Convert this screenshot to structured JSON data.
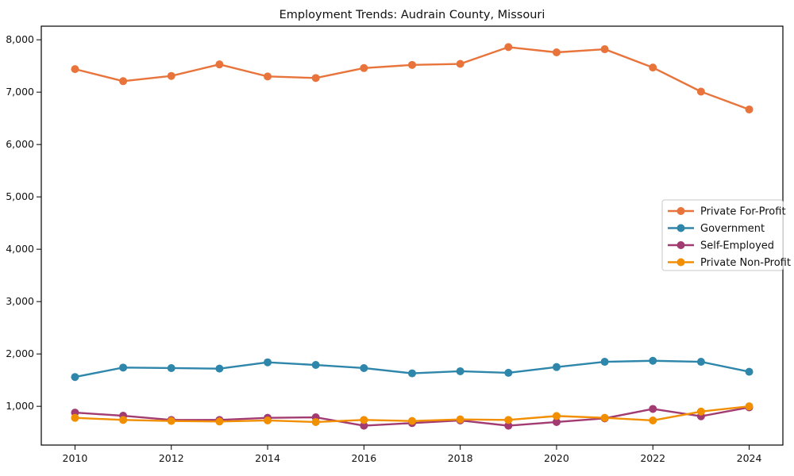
{
  "title": "Employment Trends: Audrain County, Missouri",
  "chart_data": {
    "type": "line",
    "x": [
      2010,
      2011,
      2012,
      2013,
      2014,
      2015,
      2016,
      2017,
      2018,
      2019,
      2020,
      2021,
      2022,
      2023,
      2024
    ],
    "series": [
      {
        "name": "Private For-Profit",
        "color": "#e8743b",
        "values": [
          7440,
          7210,
          7310,
          7530,
          7300,
          7270,
          7460,
          7520,
          7540,
          7860,
          7760,
          7820,
          7470,
          7010,
          6670
        ]
      },
      {
        "name": "Government",
        "color": "#2e86ab",
        "values": [
          1560,
          1740,
          1730,
          1720,
          1840,
          1790,
          1730,
          1630,
          1670,
          1640,
          1750,
          1850,
          1870,
          1850,
          1660
        ]
      },
      {
        "name": "Self-Employed",
        "color": "#a23b72",
        "values": [
          880,
          820,
          740,
          740,
          780,
          790,
          630,
          680,
          730,
          630,
          700,
          770,
          950,
          810,
          980
        ]
      },
      {
        "name": "Private Non-Profit",
        "color": "#f18f01",
        "values": [
          780,
          740,
          720,
          710,
          730,
          700,
          740,
          720,
          750,
          740,
          815,
          780,
          730,
          900,
          1000
        ]
      }
    ],
    "title": "Employment Trends: Audrain County, Missouri",
    "xlabel": "",
    "ylabel": "",
    "x_tick_values": [
      2010,
      2012,
      2014,
      2016,
      2018,
      2020,
      2022,
      2024
    ],
    "x_tick_labels": [
      "2010",
      "2012",
      "2014",
      "2016",
      "2018",
      "2020",
      "2022",
      "2024"
    ],
    "y_tick_values": [
      1000,
      2000,
      3000,
      4000,
      5000,
      6000,
      7000,
      8000
    ],
    "y_tick_labels": [
      "1,000",
      "2,000",
      "3,000",
      "4,000",
      "5,000",
      "6,000",
      "7,000",
      "8,000"
    ],
    "xlim": [
      2009.3,
      2024.7
    ],
    "ylim": [
      260,
      8260
    ],
    "grid": false,
    "legend_position": "right",
    "marker": "circle",
    "axis_color": "#000000",
    "legend_border_color": "#c9c9c9",
    "legend_background": "#ffffff"
  }
}
